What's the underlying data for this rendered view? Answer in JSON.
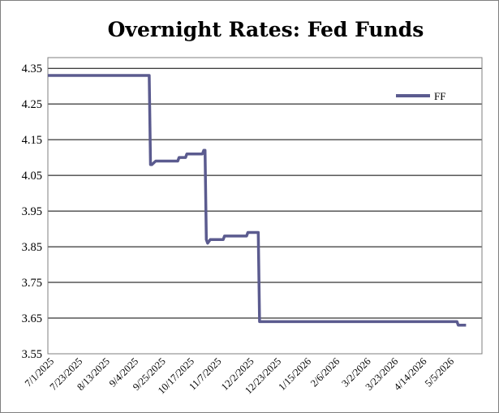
{
  "chart_data": {
    "type": "line",
    "title": "Overnight Rates: Fed Funds",
    "xlabel": "",
    "ylabel": "",
    "ylim": [
      3.55,
      4.38
    ],
    "y_ticks": [
      "4.35",
      "4.25",
      "4.15",
      "4.05",
      "3.95",
      "3.85",
      "3.75",
      "3.65",
      "3.55"
    ],
    "x_ticks": [
      "7/1/2025",
      "7/23/2025",
      "8/13/2025",
      "9/4/2025",
      "9/25/2025",
      "10/17/2025",
      "11/7/2025",
      "12/2/2025",
      "12/23/2025",
      "1/15/2026",
      "2/6/2026",
      "3/2/2026",
      "3/23/2026",
      "4/14/2026",
      "5/5/2026"
    ],
    "grid": "horizontal",
    "legend": "top-right",
    "series": [
      {
        "name": "FF",
        "color": "#5b5b8f",
        "points": [
          [
            "7/1/2025",
            4.33
          ],
          [
            "9/17/2025",
            4.33
          ],
          [
            "9/18/2025",
            4.08
          ],
          [
            "9/19/2025",
            4.08
          ],
          [
            "9/22/2025",
            4.09
          ],
          [
            "10/9/2025",
            4.09
          ],
          [
            "10/10/2025",
            4.1
          ],
          [
            "10/15/2025",
            4.1
          ],
          [
            "10/16/2025",
            4.11
          ],
          [
            "10/28/2025",
            4.11
          ],
          [
            "10/29/2025",
            4.12
          ],
          [
            "10/30/2025",
            4.12
          ],
          [
            "10/31/2025",
            3.87
          ],
          [
            "11/1/2025",
            3.86
          ],
          [
            "11/3/2025",
            3.87
          ],
          [
            "11/13/2025",
            3.87
          ],
          [
            "11/14/2025",
            3.88
          ],
          [
            "12/1/2025",
            3.88
          ],
          [
            "12/2/2025",
            3.89
          ],
          [
            "12/10/2025",
            3.89
          ],
          [
            "12/11/2025",
            3.64
          ],
          [
            "5/12/2026",
            3.64
          ],
          [
            "5/13/2026",
            3.63
          ],
          [
            "5/19/2026",
            3.63
          ]
        ]
      }
    ]
  }
}
